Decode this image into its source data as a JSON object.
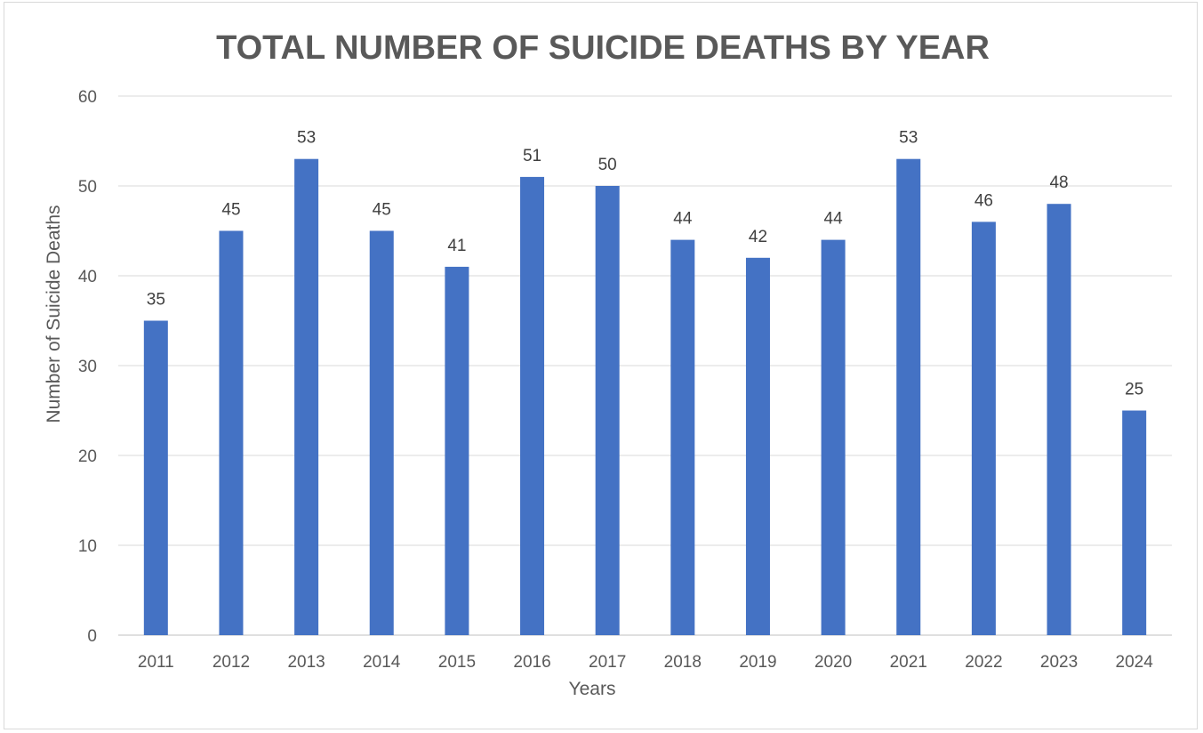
{
  "chart_data": {
    "type": "bar",
    "title": "TOTAL NUMBER OF SUICIDE DEATHS BY YEAR",
    "xlabel": "Years",
    "ylabel": "Number of Suicide Deaths",
    "categories": [
      "2011",
      "2012",
      "2013",
      "2014",
      "2015",
      "2016",
      "2017",
      "2018",
      "2019",
      "2020",
      "2021",
      "2022",
      "2023",
      "2024"
    ],
    "values": [
      35,
      45,
      53,
      45,
      41,
      51,
      50,
      44,
      42,
      44,
      53,
      46,
      48,
      25
    ],
    "ylim": [
      0,
      60
    ],
    "yticks": [
      0,
      10,
      20,
      30,
      40,
      50,
      60
    ],
    "grid": true,
    "legend": "none",
    "data_labels": true,
    "colors": {
      "bar": "#4472C4",
      "text": "#595959",
      "grid": "#d9d9d9"
    }
  }
}
